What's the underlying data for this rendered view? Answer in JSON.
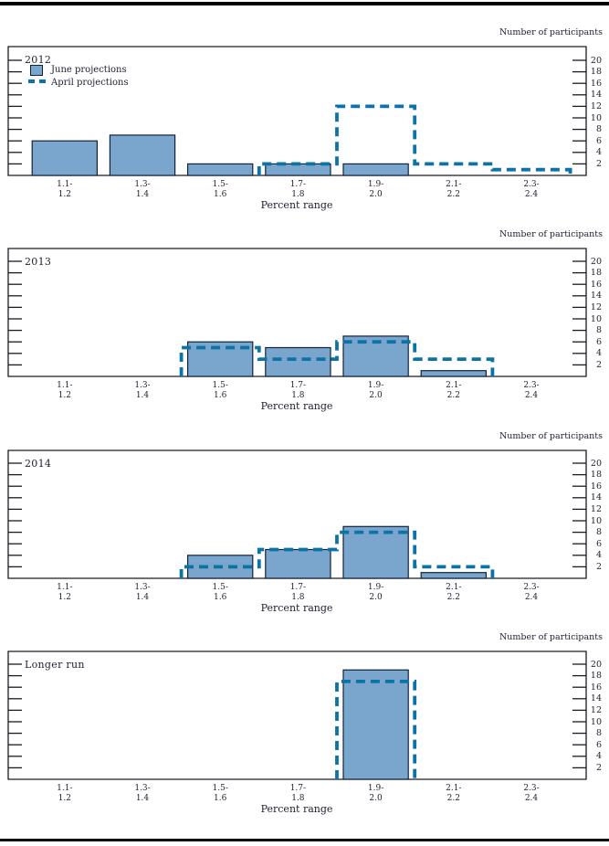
{
  "page": {
    "y_axis_title": "Number of participants",
    "x_axis_label": "Percent range"
  },
  "legend": {
    "june_label": "June projections",
    "april_label": "April projections"
  },
  "colors": {
    "bar_fill": "#7aa6ce",
    "bar_stroke": "#10233c",
    "dash": "#0d73a6",
    "axis_line": "#1a1a24",
    "text": "#1e1e30"
  },
  "axis": {
    "yticks": [
      2,
      4,
      6,
      8,
      10,
      12,
      14,
      16,
      18,
      20
    ],
    "ymax": 22.4,
    "categories_top": [
      "1.1-",
      "1.3-",
      "1.5-",
      "1.7-",
      "1.9-",
      "2.1-",
      "2.3-"
    ],
    "categories_bottom": [
      "1.2",
      "1.4",
      "1.6",
      "1.8",
      "2.0",
      "2.2",
      "2.4"
    ]
  },
  "chart_data": [
    {
      "type": "bar",
      "title": "2012",
      "categories": [
        "1.1–1.2",
        "1.3–1.4",
        "1.5–1.6",
        "1.7–1.8",
        "1.9–2.0",
        "2.1–2.2",
        "2.3–2.4"
      ],
      "series": [
        {
          "name": "June projections",
          "style": "solid-bar",
          "values": [
            6,
            7,
            2,
            2,
            2,
            0,
            0
          ]
        },
        {
          "name": "April projections",
          "style": "dashed-step",
          "values": [
            0,
            0,
            0,
            2,
            12,
            2,
            1
          ]
        }
      ],
      "xlabel": "Percent range",
      "ylabel": "Number of participants",
      "ylim": [
        0,
        22
      ],
      "grid": false,
      "legend_position": "top-left"
    },
    {
      "type": "bar",
      "title": "2013",
      "categories": [
        "1.1–1.2",
        "1.3–1.4",
        "1.5–1.6",
        "1.7–1.8",
        "1.9–2.0",
        "2.1–2.2",
        "2.3–2.4"
      ],
      "series": [
        {
          "name": "June projections",
          "style": "solid-bar",
          "values": [
            0,
            0,
            6,
            5,
            7,
            1,
            0
          ]
        },
        {
          "name": "April projections",
          "style": "dashed-step",
          "values": [
            0,
            0,
            5,
            3,
            6,
            3,
            0
          ]
        }
      ],
      "xlabel": "Percent range",
      "ylabel": "Number of participants",
      "ylim": [
        0,
        22
      ],
      "grid": false,
      "legend_position": "none"
    },
    {
      "type": "bar",
      "title": "2014",
      "categories": [
        "1.1–1.2",
        "1.3–1.4",
        "1.5–1.6",
        "1.7–1.8",
        "1.9–2.0",
        "2.1–2.2",
        "2.3–2.4"
      ],
      "series": [
        {
          "name": "June projections",
          "style": "solid-bar",
          "values": [
            0,
            0,
            4,
            5,
            9,
            1,
            0
          ]
        },
        {
          "name": "April projections",
          "style": "dashed-step",
          "values": [
            0,
            0,
            2,
            5,
            8,
            2,
            0
          ]
        }
      ],
      "xlabel": "Percent range",
      "ylabel": "Number of participants",
      "ylim": [
        0,
        22
      ],
      "grid": false,
      "legend_position": "none"
    },
    {
      "type": "bar",
      "title": "Longer run",
      "categories": [
        "1.1–1.2",
        "1.3–1.4",
        "1.5–1.6",
        "1.7–1.8",
        "1.9–2.0",
        "2.1–2.2",
        "2.3–2.4"
      ],
      "series": [
        {
          "name": "June projections",
          "style": "solid-bar",
          "values": [
            0,
            0,
            0,
            0,
            19,
            0,
            0
          ]
        },
        {
          "name": "April projections",
          "style": "dashed-step",
          "values": [
            0,
            0,
            0,
            0,
            17,
            0,
            0
          ]
        }
      ],
      "xlabel": "Percent range",
      "ylabel": "Number of participants",
      "ylim": [
        0,
        22
      ],
      "grid": false,
      "legend_position": "none"
    }
  ]
}
